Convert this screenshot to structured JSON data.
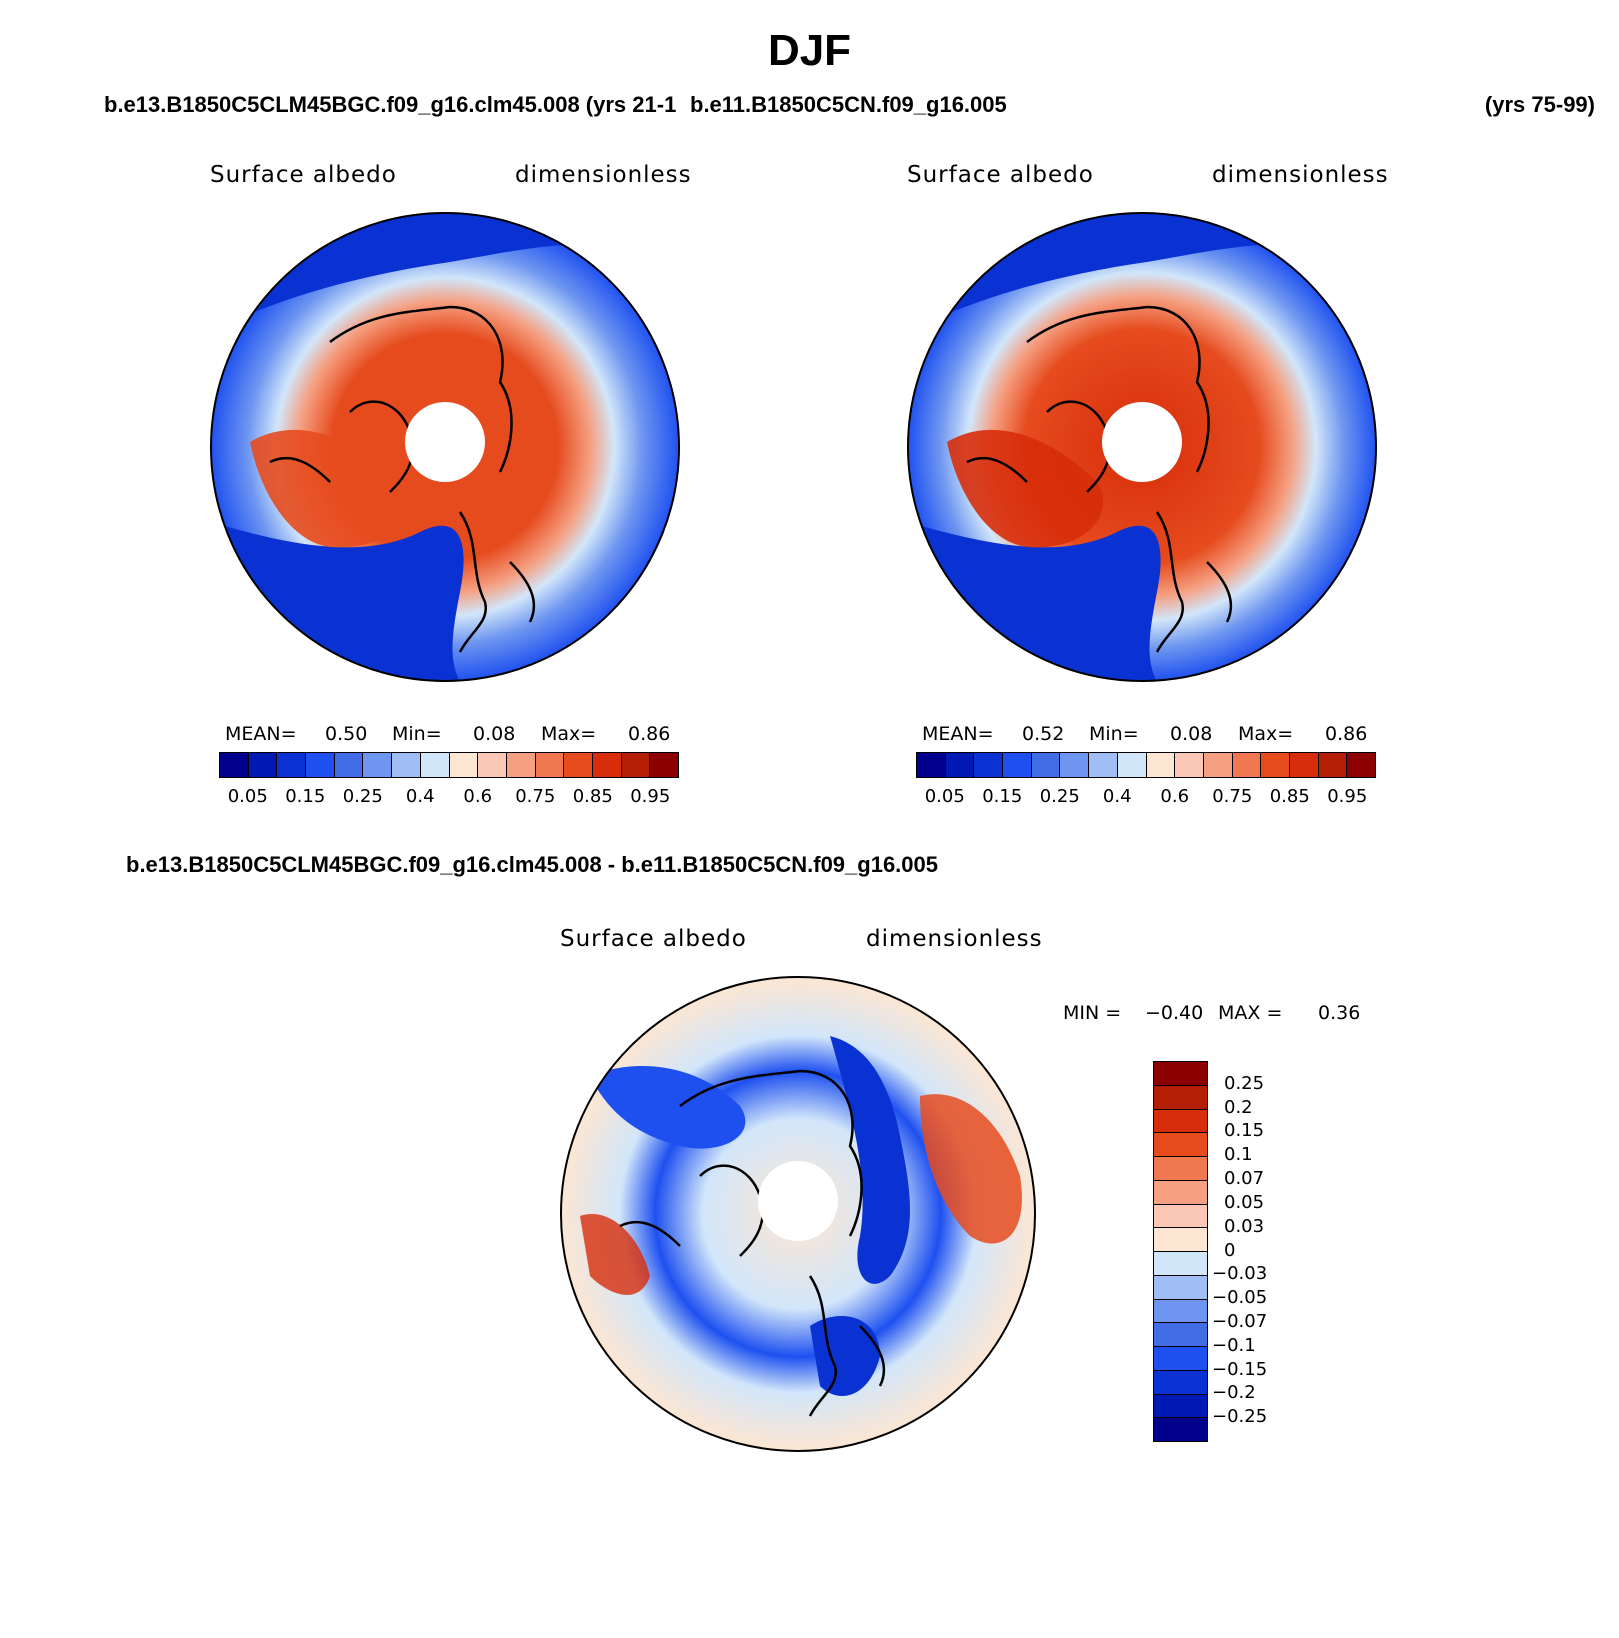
{
  "title": "DJF",
  "top_left_case": "b.e13.B1850C5CLM45BGC.f09_g16.clm45.008 (yrs 21-1",
  "top_right_case": "b.e11.B1850C5CN.f09_g16.005",
  "top_right_years": "(yrs 75-99)",
  "diff_case": "b.e13.B1850C5CLM45BGC.f09_g16.clm45.008 - b.e11.B1850C5CN.f09_g16.005",
  "panels": [
    {
      "variable": "Surface albedo",
      "units": "dimensionless",
      "mean_label": "MEAN=",
      "mean": "0.50",
      "min_label": "Min=",
      "min": "0.08",
      "max_label": "Max=",
      "max": "0.86"
    },
    {
      "variable": "Surface albedo",
      "units": "dimensionless",
      "mean_label": "MEAN=",
      "mean": "0.52",
      "min_label": "Min=",
      "min": "0.08",
      "max_label": "Max=",
      "max": "0.86"
    },
    {
      "variable": "Surface albedo",
      "units": "dimensionless",
      "min_label": "MIN =",
      "min": "−0.40",
      "max_label": "MAX =",
      "max": "0.36"
    }
  ],
  "abs_colorbar": {
    "colors": [
      "#00008c",
      "#0018b4",
      "#0a32d2",
      "#1e50f0",
      "#416ee6",
      "#6e96f0",
      "#a0bef5",
      "#d2e6fa",
      "#fde6d2",
      "#fac8b4",
      "#f5a082",
      "#f07850",
      "#e64b1e",
      "#d72d0a",
      "#b41e05",
      "#8c0000"
    ],
    "labels": [
      "0.05",
      "0.15",
      "0.25",
      "0.4",
      "0.6",
      "0.75",
      "0.85",
      "0.95"
    ]
  },
  "diff_colorbar": {
    "colors": [
      "#8c0000",
      "#b41e05",
      "#d72d0a",
      "#e64b1e",
      "#f07850",
      "#f5a082",
      "#fac8b4",
      "#fde6d2",
      "#d2e6fa",
      "#a0bef5",
      "#6e96f0",
      "#416ee6",
      "#1e50f0",
      "#0a32d2",
      "#0018b4",
      "#00008c"
    ],
    "labels": [
      "0.25",
      "0.2",
      "0.15",
      "0.1",
      "0.07",
      "0.05",
      "0.03",
      "0",
      "−0.03",
      "−0.05",
      "−0.07",
      "−0.1",
      "−0.15",
      "−0.2",
      "−0.25"
    ]
  }
}
